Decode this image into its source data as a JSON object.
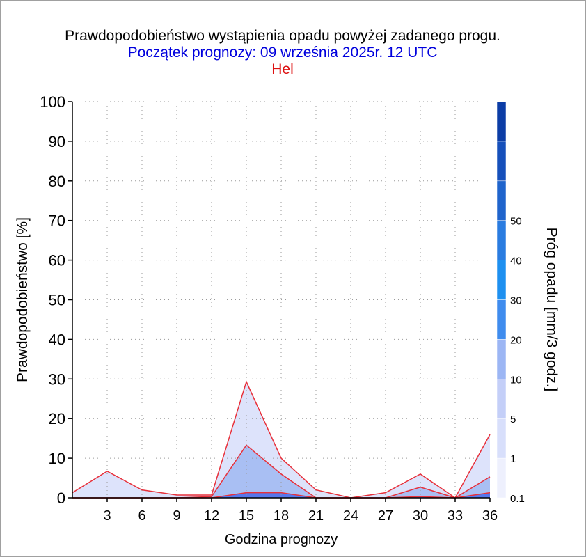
{
  "title": "Prawdopodobieństwo wystąpienia opadu powyżej zadanego progu.",
  "subtitle": "Początek prognozy: 09 września 2025r. 12 UTC",
  "location": "Hel",
  "colors": {
    "title": "#000000",
    "subtitle": "#0000dd",
    "location": "#dd1111",
    "line": "#e8303a",
    "grid": "#9a9a9a"
  },
  "chart_data": {
    "type": "area",
    "xlabel": "Godzina prognozy",
    "ylabel": "Prawdopodobieństwo [%]",
    "colorbar_label": "Próg opadu [mm/3 godz.]",
    "xlim": [
      0,
      36
    ],
    "ylim": [
      0,
      100
    ],
    "x_ticks": [
      3,
      6,
      9,
      12,
      15,
      18,
      21,
      24,
      27,
      30,
      33,
      36
    ],
    "y_ticks": [
      0,
      10,
      20,
      30,
      40,
      50,
      60,
      70,
      80,
      90,
      100
    ],
    "x": [
      0,
      3,
      6,
      9,
      12,
      15,
      18,
      21,
      24,
      27,
      30,
      33,
      36
    ],
    "grid": true,
    "series": [
      {
        "name": "0.1",
        "color": "#dde3fb",
        "values": [
          1.3,
          6.7,
          2.0,
          0.7,
          0.7,
          29.3,
          10.0,
          2.0,
          0.0,
          1.3,
          6.0,
          0.0,
          16.0
        ]
      },
      {
        "name": "1",
        "color": "#a9bff3",
        "values": [
          0,
          0,
          0,
          0,
          0.3,
          13.3,
          6.0,
          0.0,
          0,
          0,
          2.7,
          0.0,
          5.3
        ]
      },
      {
        "name": "5",
        "color": "#5577ee",
        "values": [
          0,
          0,
          0,
          0,
          0,
          1.3,
          1.3,
          0,
          0,
          0,
          0.3,
          0,
          1.3
        ]
      }
    ],
    "colorbar": {
      "labels": [
        "0.1",
        "1",
        "5",
        "10",
        "20",
        "30",
        "40",
        "50"
      ],
      "colors": [
        "#eef0fd",
        "#d8dffb",
        "#c4cff8",
        "#9cb6f4",
        "#3f8cee",
        "#1e90f0",
        "#2a7ce0",
        "#1f64cc",
        "#1650bb",
        "#0c3da6"
      ]
    }
  }
}
